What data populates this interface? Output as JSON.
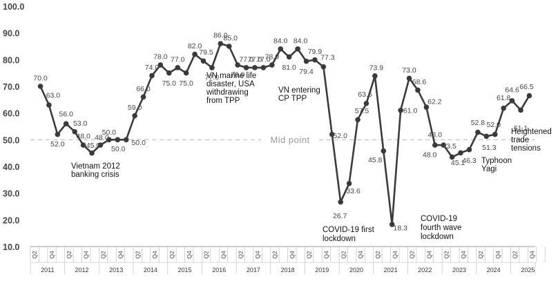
{
  "chart_data": {
    "type": "line",
    "title": "",
    "xlabel": "",
    "ylabel": "",
    "ylim": [
      10,
      100
    ],
    "yticks": [
      "10.0",
      "20.0",
      "30.0",
      "40.0",
      "50.0",
      "60.0",
      "70.0",
      "80.0",
      "90.0",
      "100.0"
    ],
    "grid": false,
    "years": [
      "2011",
      "2012",
      "2013",
      "2014",
      "2015",
      "2016",
      "2017",
      "2018",
      "2019",
      "2020",
      "2021",
      "2022",
      "2023",
      "2024",
      "2025"
    ],
    "quarter_tick_labels": [
      "Q2",
      "Q4"
    ],
    "x": [
      "2011Q2",
      "2011Q3",
      "2011Q4",
      "2012Q1",
      "2012Q2",
      "2012Q3",
      "2012Q4",
      "2013Q1",
      "2013Q2",
      "2013Q3",
      "2013Q4",
      "2014Q1",
      "2014Q2",
      "2014Q3",
      "2014Q4",
      "2015Q1",
      "2015Q2",
      "2015Q3",
      "2015Q4",
      "2016Q1",
      "2016Q2",
      "2016Q3",
      "2016Q4",
      "2017Q1",
      "2017Q2",
      "2017Q3",
      "2017Q4",
      "2018Q1",
      "2018Q2",
      "2018Q3",
      "2018Q4",
      "2019Q1",
      "2019Q2",
      "2019Q3",
      "2019Q4",
      "2020Q1",
      "2020Q2",
      "2020Q3",
      "2020Q4",
      "2021Q1",
      "2021Q2",
      "2021Q3",
      "2021Q4",
      "2022Q1",
      "2022Q2",
      "2022Q3",
      "2022Q4",
      "2023Q1",
      "2023Q2",
      "2023Q3",
      "2023Q4",
      "2024Q1",
      "2024Q2",
      "2024Q3",
      "2024Q4",
      "2025Q1",
      "2025Q2",
      "2025Q3"
    ],
    "values": [
      70.0,
      63.0,
      52.0,
      56.0,
      53.0,
      48.0,
      45.0,
      48.0,
      50.0,
      50.0,
      50.0,
      59.0,
      66.0,
      74.0,
      78.0,
      75.0,
      77.0,
      75.0,
      82.0,
      79.5,
      77.0,
      86.0,
      85.0,
      78.0,
      77.0,
      77.0,
      77.0,
      78.0,
      84.0,
      81.0,
      84.0,
      79.4,
      79.9,
      77.3,
      52.0,
      26.7,
      33.6,
      57.5,
      63.6,
      73.9,
      45.8,
      18.3,
      61.0,
      73.0,
      68.6,
      62.2,
      48.0,
      48.0,
      43.5,
      45.1,
      46.3,
      52.8,
      51.3,
      52.0,
      61.8,
      64.6,
      61.1,
      66.5
    ],
    "point_labels": [
      "70.0",
      "63.0",
      "52.0",
      "56.0",
      "53.0",
      "48.0",
      "45.0",
      "48.0",
      "50.0",
      "50.0",
      "50.0",
      "59.0",
      "66.0",
      "74.0",
      "78.0",
      "75.0",
      "77.0",
      "75.0",
      "82.0",
      "79.5",
      "77.0",
      "86.0",
      "85.0",
      "78.0",
      "77.0",
      "77.0",
      "77.0",
      "78.0",
      "84.0",
      "81.0",
      "84.0",
      "79.4",
      "79.9",
      "77.3",
      "52.0",
      "26.7",
      "33.6",
      "57.5",
      "63.6",
      "73.9",
      "45.8",
      "18.3",
      "61.0",
      "73.0",
      "68.6",
      "62.2",
      "48.0",
      "48.0",
      "43.5",
      "45.1",
      "46.3",
      "52.8",
      "51.3",
      "52.0",
      "61.8",
      "64.6",
      "61.1",
      "66.5"
    ],
    "reference_line": {
      "value": 50,
      "label": "Mid point"
    },
    "annotations": [
      {
        "lines": [
          "Vietnam 2012",
          "banking crisis"
        ]
      },
      {
        "lines": [
          "VN marine life",
          "disaster, USA",
          "withdrawing",
          "from TPP"
        ]
      },
      {
        "lines": [
          "VN entering",
          "CP TPP"
        ]
      },
      {
        "lines": [
          "COVID-19 first",
          "lockdown"
        ]
      },
      {
        "lines": [
          "COVID-19",
          "fourth wave",
          "lockdown"
        ]
      },
      {
        "lines": [
          "Typhoon",
          "Yagi"
        ]
      },
      {
        "lines": [
          "Heightened",
          "trade",
          "tensions"
        ]
      }
    ],
    "colors": {
      "line": "#3a3a3a",
      "marker": "#3a3a3a",
      "midline": "#bbbbbb",
      "axis": "#999999"
    }
  }
}
